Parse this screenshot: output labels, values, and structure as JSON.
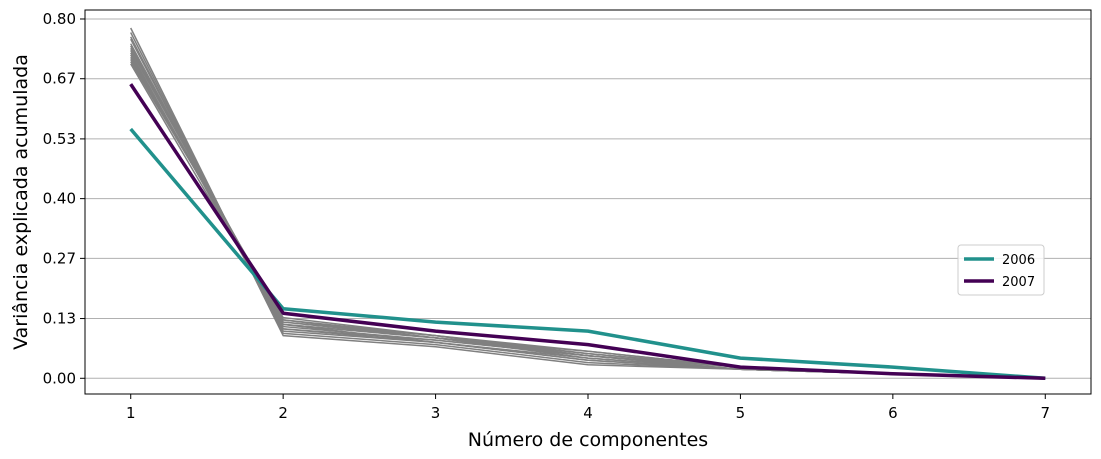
{
  "chart_data": {
    "type": "line",
    "xlabel": "Número de componentes",
    "ylabel": "Variância explicada acumulada",
    "x": [
      1,
      2,
      3,
      4,
      5,
      6,
      7
    ],
    "x_ticks": [
      "1",
      "2",
      "3",
      "4",
      "5",
      "6",
      "7"
    ],
    "y_ticks": [
      0.0,
      0.133,
      0.267,
      0.4,
      0.533,
      0.667,
      0.8
    ],
    "y_tick_labels": [
      "0.00",
      "0.13",
      "0.27",
      "0.40",
      "0.53",
      "0.67",
      "0.80"
    ],
    "xlim": [
      0.7,
      7.3
    ],
    "ylim": [
      -0.035,
      0.82
    ],
    "grid": "horizontal",
    "legend_position": "center-right",
    "background_series_color": "#808080",
    "background_series": [
      [
        0.78,
        0.095,
        0.07,
        0.03,
        0.02,
        0.01,
        0.0
      ],
      [
        0.77,
        0.1,
        0.075,
        0.035,
        0.02,
        0.01,
        0.0
      ],
      [
        0.76,
        0.105,
        0.08,
        0.04,
        0.02,
        0.01,
        0.0
      ],
      [
        0.755,
        0.11,
        0.08,
        0.045,
        0.02,
        0.01,
        0.0
      ],
      [
        0.745,
        0.115,
        0.085,
        0.05,
        0.02,
        0.01,
        0.0
      ],
      [
        0.74,
        0.12,
        0.09,
        0.05,
        0.025,
        0.01,
        0.0
      ],
      [
        0.735,
        0.12,
        0.09,
        0.055,
        0.025,
        0.01,
        0.0
      ],
      [
        0.73,
        0.125,
        0.095,
        0.055,
        0.025,
        0.01,
        0.0
      ],
      [
        0.725,
        0.11,
        0.085,
        0.05,
        0.025,
        0.01,
        0.0
      ],
      [
        0.72,
        0.125,
        0.09,
        0.06,
        0.025,
        0.01,
        0.0
      ],
      [
        0.715,
        0.13,
        0.095,
        0.06,
        0.025,
        0.01,
        0.0
      ],
      [
        0.71,
        0.13,
        0.09,
        0.045,
        0.02,
        0.01,
        0.0
      ],
      [
        0.705,
        0.135,
        0.095,
        0.05,
        0.02,
        0.01,
        0.0
      ],
      [
        0.7,
        0.12,
        0.08,
        0.04,
        0.02,
        0.01,
        0.0
      ]
    ],
    "series": [
      {
        "name": "2006",
        "color": "#21918c",
        "values": [
          0.555,
          0.155,
          0.125,
          0.105,
          0.045,
          0.025,
          0.0
        ]
      },
      {
        "name": "2007",
        "color": "#440154",
        "values": [
          0.655,
          0.145,
          0.105,
          0.075,
          0.025,
          0.01,
          0.0
        ]
      }
    ]
  }
}
